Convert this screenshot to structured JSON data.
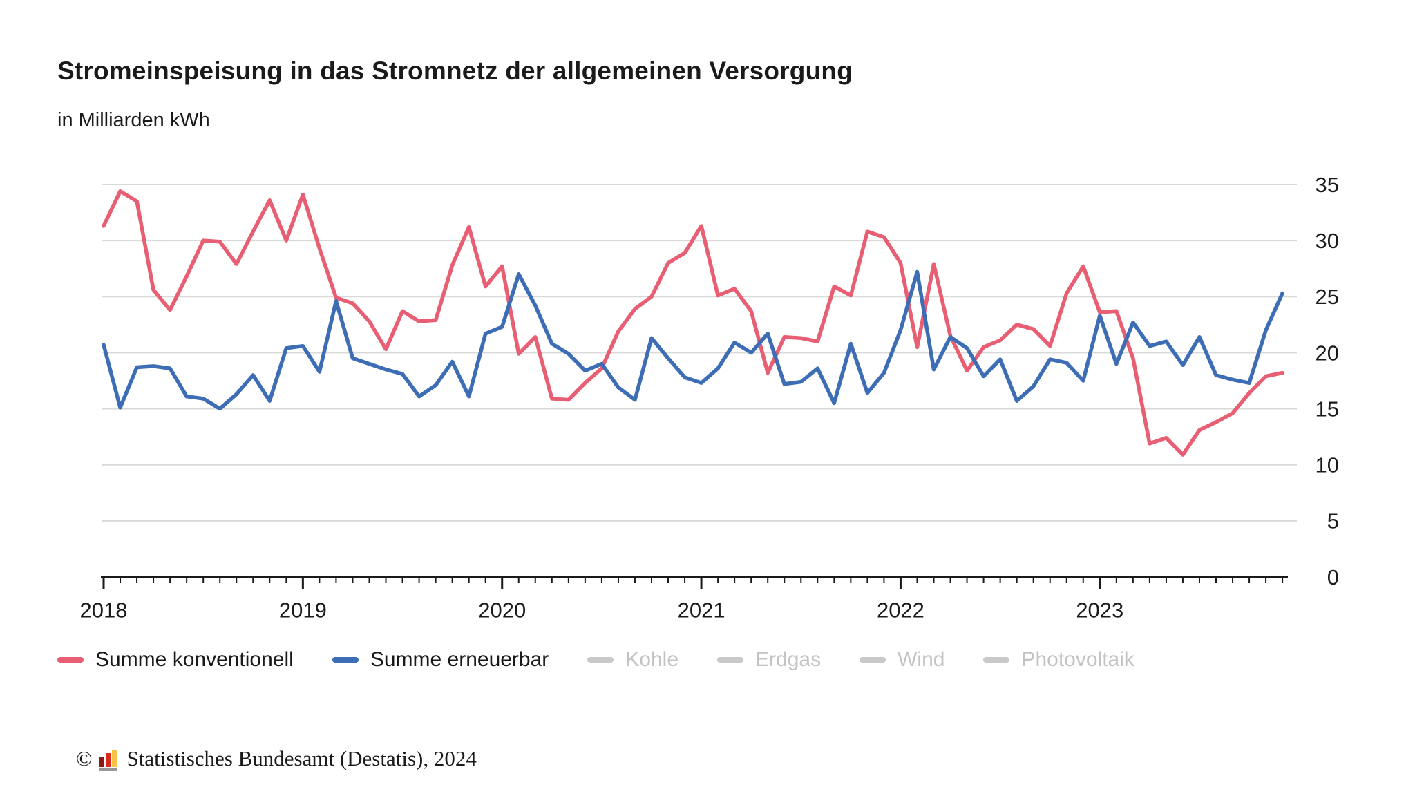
{
  "header": {
    "title": "Stromeinspeisung in das Stromnetz der allgemeinen Versorgung",
    "subtitle": "in Milliarden kWh"
  },
  "colors": {
    "conventional": "#E85E72",
    "renewable": "#3D6DB5",
    "disabled_dash": "#c9c9c9",
    "disabled_text": "#c3c3c3",
    "grid": "#d9d9d9",
    "axis": "#1a1a1a",
    "text": "#1a1a1a"
  },
  "legend": {
    "items": [
      {
        "label": "Summe konventionell",
        "color": "#E85E72",
        "active": true
      },
      {
        "label": "Summe erneuerbar",
        "color": "#3D6DB5",
        "active": true
      },
      {
        "label": "Kohle",
        "color": "#c9c9c9",
        "active": false
      },
      {
        "label": "Erdgas",
        "color": "#c9c9c9",
        "active": false
      },
      {
        "label": "Wind",
        "color": "#c9c9c9",
        "active": false
      },
      {
        "label": "Photovoltaik",
        "color": "#c9c9c9",
        "active": false
      }
    ]
  },
  "footer": {
    "copyright_symbol": "©",
    "source": "Statistisches Bundesamt (Destatis), 2024",
    "logo_bar_colors": [
      "#8E1711",
      "#DA291C",
      "#F6C343"
    ],
    "logo_base_color": "#98989A"
  },
  "chart_data": {
    "type": "line",
    "title": "Stromeinspeisung in das Stromnetz der allgemeinen Versorgung",
    "ylabel": "Milliarden kWh",
    "xlabel": "",
    "x_interval": "month",
    "x_start": "2018-01",
    "x_end": "2023-12",
    "x_tick_labels": [
      "2018",
      "2019",
      "2020",
      "2021",
      "2022",
      "2023"
    ],
    "y_ticks": [
      0,
      5,
      10,
      15,
      20,
      25,
      30,
      35
    ],
    "y_tick_labels": [
      "0",
      "5",
      "10",
      "15",
      "20",
      "25",
      "30",
      "35"
    ],
    "ylim": [
      0,
      35
    ],
    "grid": "horizontal",
    "legend_position": "bottom",
    "series": [
      {
        "name": "Summe konventionell",
        "color": "#E85E72",
        "visible": true,
        "values": [
          31.3,
          34.4,
          33.5,
          25.6,
          23.8,
          26.8,
          30.0,
          29.9,
          27.9,
          30.8,
          33.6,
          30.0,
          34.1,
          29.3,
          24.9,
          24.4,
          22.8,
          20.3,
          23.7,
          22.8,
          22.9,
          27.8,
          31.2,
          25.9,
          27.7,
          19.9,
          21.4,
          15.9,
          15.8,
          17.3,
          18.6,
          21.9,
          23.9,
          25.0,
          28.0,
          28.9,
          31.3,
          25.1,
          25.7,
          23.7,
          18.2,
          21.4,
          21.3,
          21.0,
          25.9,
          25.1,
          30.8,
          30.3,
          28.0,
          20.5,
          27.9,
          21.5,
          18.4,
          20.5,
          21.1,
          22.5,
          22.1,
          20.6,
          25.3,
          27.7,
          23.6,
          23.7,
          19.5,
          11.9,
          12.4,
          10.9,
          13.1,
          13.8,
          14.6,
          16.4,
          17.9,
          18.2
        ]
      },
      {
        "name": "Summe erneuerbar",
        "color": "#3D6DB5",
        "visible": true,
        "values": [
          20.7,
          15.1,
          18.7,
          18.8,
          18.6,
          16.1,
          15.9,
          15.0,
          16.3,
          18.0,
          15.7,
          20.4,
          20.6,
          18.3,
          24.6,
          19.5,
          19.0,
          18.5,
          18.1,
          16.1,
          17.1,
          19.2,
          16.1,
          21.7,
          22.3,
          27.0,
          24.2,
          20.8,
          19.9,
          18.4,
          19.0,
          16.9,
          15.8,
          21.3,
          19.5,
          17.8,
          17.3,
          18.6,
          20.9,
          20.0,
          21.7,
          17.2,
          17.4,
          18.6,
          15.5,
          20.8,
          16.4,
          18.2,
          22.0,
          27.2,
          18.5,
          21.4,
          20.4,
          17.9,
          19.4,
          15.7,
          17.0,
          19.4,
          19.1,
          17.5,
          23.3,
          19.0,
          22.7,
          20.6,
          21.0,
          18.9,
          21.4,
          18.0,
          17.6,
          17.3,
          22.0,
          25.3
        ]
      },
      {
        "name": "Kohle",
        "color": "#c9c9c9",
        "visible": false,
        "values": []
      },
      {
        "name": "Erdgas",
        "color": "#c9c9c9",
        "visible": false,
        "values": []
      },
      {
        "name": "Wind",
        "color": "#c9c9c9",
        "visible": false,
        "values": []
      },
      {
        "name": "Photovoltaik",
        "color": "#c9c9c9",
        "visible": false,
        "values": []
      }
    ]
  }
}
